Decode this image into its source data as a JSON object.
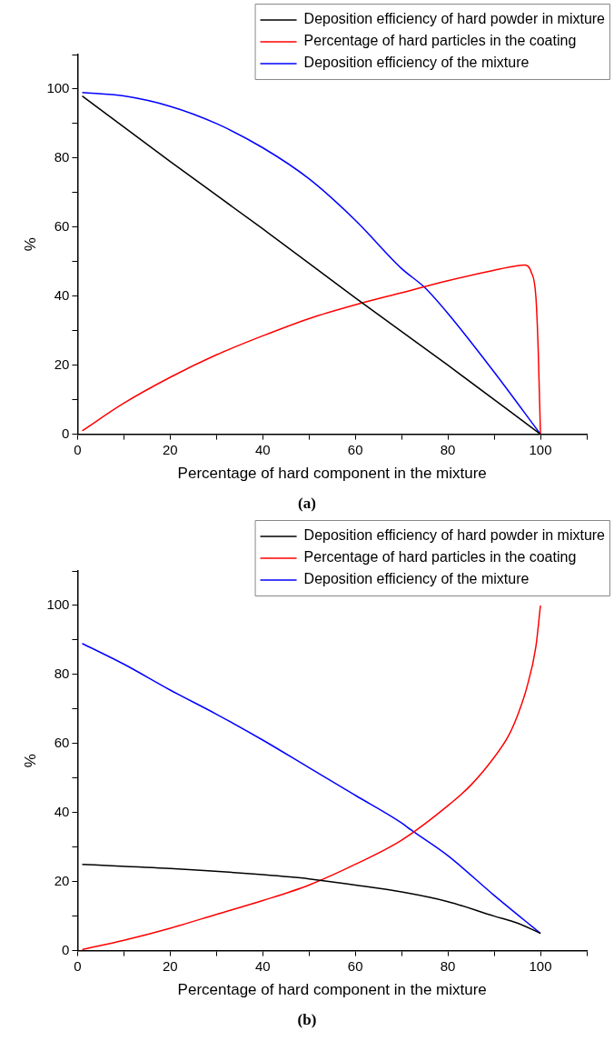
{
  "chart_data": [
    {
      "type": "line",
      "xlabel": "Percentage of hard component in the mixture",
      "ylabel": "%",
      "annotations": [
        "(a)"
      ],
      "legend": "top right",
      "grid": false,
      "marker": "none",
      "line_style": "solid",
      "xlim": [
        0,
        110
      ],
      "xticks": [
        0,
        {
          "value": 10,
          "label": null
        },
        20,
        {
          "value": 30,
          "label": null
        },
        40,
        {
          "value": 50,
          "label": null
        },
        60,
        {
          "value": 70,
          "label": null
        },
        80,
        {
          "value": 90,
          "label": null
        },
        100,
        {
          "value": 110,
          "label": null
        }
      ],
      "ylim": [
        0,
        110
      ],
      "yticks": [
        0,
        {
          "value": 10,
          "label": null
        },
        20,
        {
          "value": 30,
          "label": null
        },
        40,
        {
          "value": 50,
          "label": null
        },
        60,
        {
          "value": 70,
          "label": null
        },
        80,
        {
          "value": 90,
          "label": null
        },
        100,
        {
          "value": 110,
          "label": null
        }
      ],
      "series": [
        {
          "name": "Deposition efficiency of hard powder in mixture",
          "color": "#000000",
          "x": [
            1,
            20,
            40,
            60,
            80,
            100
          ],
          "values": [
            98,
            79,
            59.5,
            39.5,
            20,
            0
          ]
        },
        {
          "name": "Percentage of hard particles in the coating",
          "color": "#ff0000",
          "x": [
            1,
            10,
            20,
            30,
            40,
            50,
            60,
            70,
            80,
            90,
            95,
            96.5,
            98,
            99,
            99.5,
            100
          ],
          "values": [
            1,
            9,
            16.5,
            23,
            28.5,
            33.5,
            37.5,
            41,
            44.5,
            47.5,
            48.8,
            49,
            47,
            40,
            25,
            0
          ]
        },
        {
          "name": "Deposition efficiency of the mixture",
          "color": "#0000ff",
          "x": [
            1,
            10,
            20,
            30,
            40,
            50,
            60,
            70,
            75,
            80,
            90,
            100
          ],
          "values": [
            99,
            98,
            95,
            90,
            83,
            74,
            62,
            48,
            42.5,
            35,
            18,
            0
          ]
        }
      ]
    },
    {
      "type": "line",
      "xlabel": "Percentage of hard component in the mixture",
      "ylabel": "%",
      "annotations": [
        "(b)"
      ],
      "legend": "top right",
      "grid": false,
      "marker": "none",
      "line_style": "solid",
      "xlim": [
        0,
        110
      ],
      "xticks": [
        0,
        {
          "value": 10,
          "label": null
        },
        20,
        {
          "value": 30,
          "label": null
        },
        40,
        {
          "value": 50,
          "label": null
        },
        60,
        {
          "value": 70,
          "label": null
        },
        80,
        {
          "value": 90,
          "label": null
        },
        100,
        {
          "value": 110,
          "label": null
        }
      ],
      "ylim": [
        0,
        110
      ],
      "yticks": [
        0,
        {
          "value": 10,
          "label": null
        },
        20,
        {
          "value": 30,
          "label": null
        },
        40,
        {
          "value": 50,
          "label": null
        },
        60,
        {
          "value": 70,
          "label": null
        },
        80,
        {
          "value": 90,
          "label": null
        },
        100,
        {
          "value": 110,
          "label": null
        }
      ],
      "series": [
        {
          "name": "Deposition efficiency of hard powder in mixture",
          "color": "#000000",
          "x": [
            1,
            20,
            40,
            50,
            60,
            70,
            80,
            90,
            95,
            100
          ],
          "values": [
            25,
            23.8,
            22,
            20.8,
            19,
            17,
            14.2,
            10,
            8,
            5
          ]
        },
        {
          "name": "Percentage of hard particles in the coating",
          "color": "#ff0000",
          "x": [
            1,
            10,
            20,
            30,
            40,
            50,
            60,
            70,
            80,
            85,
            90,
            93,
            95,
            97,
            99,
            100
          ],
          "values": [
            0.3,
            3,
            6.5,
            10.5,
            14.5,
            19,
            25,
            32,
            42,
            48,
            56,
            62,
            68,
            76,
            88,
            100
          ]
        },
        {
          "name": "Deposition efficiency of the mixture",
          "color": "#0000ff",
          "x": [
            1,
            10,
            20,
            30,
            40,
            50,
            60,
            70,
            72,
            80,
            90,
            100
          ],
          "values": [
            89,
            83,
            75.5,
            68.5,
            61,
            53,
            45,
            37,
            35,
            27.5,
            16,
            5
          ]
        }
      ]
    }
  ]
}
